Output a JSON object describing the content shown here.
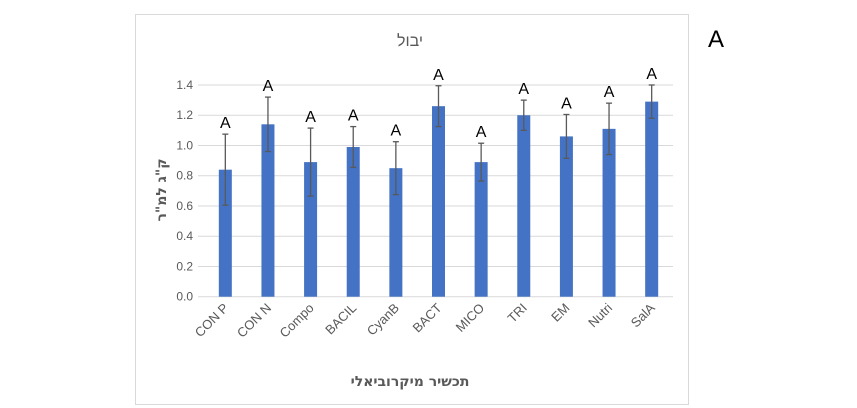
{
  "panel_label": "A",
  "chart_data": {
    "type": "bar",
    "title": "יבול",
    "xlabel": "תכשיר מיקרוביאלי",
    "ylabel": "ק\"ג למ\"ר",
    "ylim": [
      0,
      1.4
    ],
    "yticks": [
      "0.0",
      "0.2",
      "0.4",
      "0.6",
      "0.8",
      "1.0",
      "1.2",
      "1.4"
    ],
    "grid": true,
    "categories": [
      "CON P",
      "CON N",
      "Compo",
      "BACIL",
      "CyanB",
      "BACT",
      "MICO",
      "TRI",
      "EM",
      "Nutri",
      "SalA"
    ],
    "values": [
      0.84,
      1.14,
      0.89,
      0.99,
      0.85,
      1.26,
      0.89,
      1.2,
      1.06,
      1.11,
      1.29
    ],
    "errors": [
      0.235,
      0.18,
      0.225,
      0.135,
      0.175,
      0.135,
      0.125,
      0.1,
      0.145,
      0.17,
      0.11
    ],
    "annotations": [
      "A",
      "A",
      "A",
      "A",
      "A",
      "A",
      "A",
      "A",
      "A",
      "A",
      "A"
    ],
    "bar_color": "#4472c4",
    "error_color": "#595959"
  }
}
